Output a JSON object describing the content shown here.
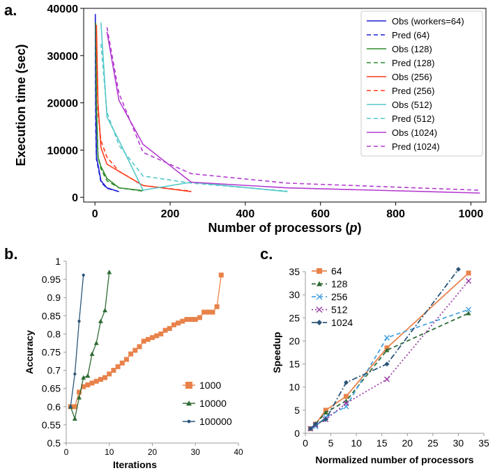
{
  "panel_labels": {
    "a": "a.",
    "b": "b.",
    "c": "c."
  },
  "colors": {
    "blue": "#1f1fd6",
    "green": "#2e8b2e",
    "red": "#ff3a1a",
    "cyan": "#55c8c8",
    "purple": "#b43bd0",
    "orange": "#e8824a",
    "darkgreen": "#2f6b35",
    "lightblue": "#4aa3df",
    "magenta": "#9b3fa6",
    "navy": "#2a5578"
  },
  "chart_data": [
    {
      "type": "line",
      "xlabel_prefix": "Number of processors (",
      "xlabel_var": "p",
      "xlabel_suffix": ")",
      "ylabel": "Execution time (sec)",
      "xlim": [
        -30,
        1040
      ],
      "ylim": [
        -1000,
        40000
      ],
      "xticks": [
        0,
        200,
        400,
        600,
        800,
        1000
      ],
      "yticks": [
        0,
        10000,
        20000,
        30000,
        40000
      ],
      "legend_position": "top-right",
      "series": [
        {
          "name": "Obs (workers=64)",
          "color": "blue",
          "dash": false,
          "x": [
            1,
            2,
            4,
            8,
            16,
            32,
            64
          ],
          "y": [
            38800,
            20000,
            8500,
            7000,
            3500,
            2000,
            1200
          ]
        },
        {
          "name": "Pred (64)",
          "color": "blue",
          "dash": true,
          "x": [
            1,
            2,
            4,
            8,
            16,
            32,
            64
          ],
          "y": [
            38000,
            15000,
            8000,
            6500,
            3200,
            1900,
            1200
          ]
        },
        {
          "name": "Obs (128)",
          "color": "green",
          "dash": false,
          "x": [
            2,
            4,
            8,
            16,
            32,
            64,
            128
          ],
          "y": [
            37000,
            20000,
            8500,
            6500,
            4000,
            2000,
            1400
          ]
        },
        {
          "name": "Pred (128)",
          "color": "green",
          "dash": true,
          "x": [
            2,
            4,
            8,
            16,
            32,
            64,
            128
          ],
          "y": [
            36000,
            18000,
            9000,
            6000,
            3500,
            2000,
            1300
          ]
        },
        {
          "name": "Obs (256)",
          "color": "red",
          "dash": false,
          "x": [
            4,
            8,
            16,
            32,
            64,
            128,
            256
          ],
          "y": [
            36500,
            20000,
            10500,
            7000,
            5500,
            2500,
            1200
          ]
        },
        {
          "name": "Pred (256)",
          "color": "red",
          "dash": true,
          "x": [
            4,
            8,
            16,
            32,
            64,
            128,
            256
          ],
          "y": [
            34000,
            18000,
            12000,
            8500,
            5500,
            2500,
            1300
          ]
        },
        {
          "name": "Obs (512)",
          "color": "cyan",
          "dash": false,
          "x": [
            16,
            32,
            64,
            128,
            256,
            512
          ],
          "y": [
            37000,
            17000,
            12000,
            1500,
            3200,
            1200
          ]
        },
        {
          "name": "Pred (512)",
          "color": "cyan",
          "dash": true,
          "x": [
            16,
            32,
            64,
            128,
            256,
            512
          ],
          "y": [
            32500,
            18000,
            11000,
            4500,
            3000,
            1300
          ]
        },
        {
          "name": "Obs (1024)",
          "color": "purple",
          "dash": false,
          "x": [
            32,
            64,
            128,
            256,
            512,
            1024
          ],
          "y": [
            35000,
            20500,
            11200,
            3200,
            2000,
            900
          ]
        },
        {
          "name": "Pred (1024)",
          "color": "purple",
          "dash": true,
          "x": [
            32,
            64,
            128,
            256,
            512,
            1024
          ],
          "y": [
            36000,
            22000,
            9500,
            5000,
            3000,
            1500
          ]
        }
      ]
    },
    {
      "type": "line",
      "xlabel": "Iterations",
      "ylabel": "Accuracy",
      "xlim": [
        0,
        40
      ],
      "ylim": [
        0.5,
        1
      ],
      "xticks": [
        0,
        10,
        20,
        30,
        40
      ],
      "yticks": [
        0.5,
        0.55,
        0.6,
        0.65,
        0.7,
        0.75,
        0.8,
        0.85,
        0.9,
        0.95,
        1
      ],
      "ytick_labels": [
        "0.5",
        "0.55",
        "0.6",
        "0.65",
        "0.7",
        "0.75",
        "0.8",
        "0.85",
        "0.9",
        "0.95",
        "1"
      ],
      "legend_position": "center-right",
      "series": [
        {
          "name": "1000",
          "color": "orange",
          "marker": "square",
          "x": [
            1,
            2,
            3,
            4,
            5,
            6,
            7,
            8,
            9,
            10,
            11,
            12,
            13,
            14,
            15,
            16,
            17,
            18,
            19,
            20,
            21,
            22,
            23,
            24,
            25,
            26,
            27,
            28,
            29,
            30,
            31,
            32,
            33,
            34,
            35,
            36
          ],
          "y": [
            0.6,
            0.6,
            0.64,
            0.655,
            0.66,
            0.665,
            0.67,
            0.675,
            0.68,
            0.69,
            0.7,
            0.71,
            0.72,
            0.73,
            0.745,
            0.755,
            0.765,
            0.78,
            0.785,
            0.79,
            0.795,
            0.8,
            0.81,
            0.815,
            0.825,
            0.83,
            0.835,
            0.84,
            0.84,
            0.84,
            0.845,
            0.86,
            0.86,
            0.86,
            0.875,
            0.962
          ]
        },
        {
          "name": "10000",
          "color": "darkgreen",
          "marker": "triangle",
          "x": [
            1,
            2,
            3,
            4,
            5,
            6,
            7,
            8,
            9,
            10
          ],
          "y": [
            0.6,
            0.567,
            0.625,
            0.68,
            0.685,
            0.745,
            0.775,
            0.835,
            0.865,
            0.97
          ]
        },
        {
          "name": "100000",
          "color": "navy",
          "marker": "dot",
          "x": [
            1,
            2,
            3,
            4
          ],
          "y": [
            0.6,
            0.69,
            0.835,
            0.962
          ]
        }
      ]
    },
    {
      "type": "line",
      "xlabel": "Normalized number of processors",
      "ylabel": "Speedup",
      "xlim": [
        0,
        35
      ],
      "ylim": [
        0,
        35
      ],
      "xticks": [
        0,
        5,
        10,
        15,
        20,
        25,
        30,
        35
      ],
      "yticks": [
        0,
        5,
        10,
        15,
        20,
        25,
        30,
        35
      ],
      "legend_position": "top-left",
      "series": [
        {
          "name": "64",
          "color": "orange",
          "dash": "solid",
          "marker": "square",
          "x": [
            1,
            2,
            4,
            8,
            16,
            32
          ],
          "y": [
            1,
            2,
            5,
            8,
            18.5,
            34.7
          ]
        },
        {
          "name": "128",
          "color": "darkgreen",
          "dash": "dashed",
          "marker": "triangle",
          "x": [
            1,
            2,
            4,
            8,
            16,
            32
          ],
          "y": [
            1,
            2,
            4.5,
            7,
            18,
            26
          ]
        },
        {
          "name": "256",
          "color": "lightblue",
          "dash": "dashed",
          "marker": "x",
          "x": [
            1,
            2,
            4,
            8,
            16,
            32
          ],
          "y": [
            1,
            1.5,
            3.5,
            5.8,
            20.7,
            26.8
          ]
        },
        {
          "name": "512",
          "color": "magenta",
          "dash": "dotted",
          "marker": "x",
          "x": [
            1,
            2,
            4,
            8,
            16,
            32
          ],
          "y": [
            1,
            1.8,
            3,
            6.5,
            11.7,
            33
          ]
        },
        {
          "name": "1024",
          "color": "navy",
          "dash": "dashdot",
          "marker": "diamond",
          "x": [
            1,
            2,
            4,
            8,
            16,
            30
          ],
          "y": [
            1,
            2,
            3,
            11,
            15,
            35.5
          ]
        }
      ]
    }
  ]
}
